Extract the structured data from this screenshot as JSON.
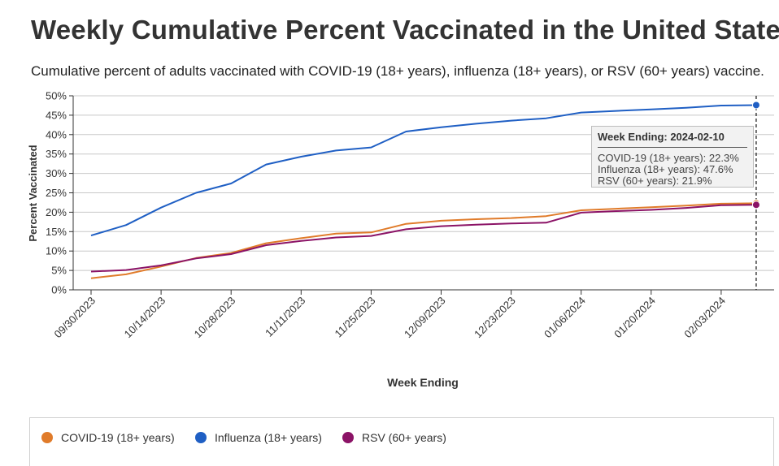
{
  "header": {
    "title": "Weekly Cumulative Percent Vaccinated in the United States",
    "subtitle": "Cumulative percent of adults vaccinated with COVID-19 (18+ years), influenza (18+ years), or RSV (60+ years) vaccine."
  },
  "colors": {
    "covid": "#e07b2a",
    "influenza": "#1f5fc4",
    "rsv": "#8b1366",
    "grid": "#c8c8c8",
    "axis": "#333333"
  },
  "tooltip": {
    "title": "Week Ending: 2024-02-10",
    "rows": [
      "COVID-19 (18+ years): 22.3%",
      "Influenza (18+ years): 47.6%",
      "RSV (60+ years): 21.9%"
    ]
  },
  "legend": {
    "items": [
      {
        "label": "COVID-19 (18+ years)",
        "color": "#e07b2a"
      },
      {
        "label": "Influenza (18+ years)",
        "color": "#1f5fc4"
      },
      {
        "label": "RSV (60+ years)",
        "color": "#8b1366"
      }
    ]
  },
  "chart_data": {
    "type": "line",
    "xlabel": "Week Ending",
    "ylabel": "Percent Vaccinated",
    "ylim": [
      0,
      50
    ],
    "yticks": [
      0,
      5,
      10,
      15,
      20,
      25,
      30,
      35,
      40,
      45,
      50
    ],
    "ytick_labels": [
      "0%",
      "5%",
      "10%",
      "15%",
      "20%",
      "25%",
      "30%",
      "35%",
      "40%",
      "45%",
      "50%"
    ],
    "xtick_labels": [
      "09/30/2023",
      "10/14/2023",
      "10/28/2023",
      "11/11/2023",
      "11/25/2023",
      "12/09/2023",
      "12/23/2023",
      "01/06/2024",
      "01/20/2024",
      "02/03/2024"
    ],
    "x": [
      "09/30/2023",
      "10/07/2023",
      "10/14/2023",
      "10/21/2023",
      "10/28/2023",
      "11/04/2023",
      "11/11/2023",
      "11/18/2023",
      "11/25/2023",
      "12/02/2023",
      "12/09/2023",
      "12/16/2023",
      "12/23/2023",
      "12/30/2023",
      "01/06/2024",
      "01/13/2024",
      "01/20/2024",
      "01/27/2024",
      "02/03/2024",
      "02/10/2024"
    ],
    "grid": true,
    "legend_position": "bottom",
    "highlight_x": "02/10/2024",
    "series": [
      {
        "name": "COVID-19 (18+ years)",
        "color": "#e07b2a",
        "values": [
          3.0,
          4.0,
          6.0,
          8.2,
          9.5,
          12.0,
          13.3,
          14.5,
          14.8,
          17.0,
          17.8,
          18.2,
          18.5,
          19.0,
          20.5,
          20.9,
          21.3,
          21.7,
          22.2,
          22.3
        ]
      },
      {
        "name": "Influenza (18+ years)",
        "color": "#1f5fc4",
        "values": [
          14.0,
          16.7,
          21.2,
          25.0,
          27.4,
          32.3,
          34.3,
          35.9,
          36.7,
          40.8,
          41.9,
          42.8,
          43.6,
          44.2,
          45.7,
          46.1,
          46.5,
          46.9,
          47.5,
          47.6
        ]
      },
      {
        "name": "RSV (60+ years)",
        "color": "#8b1366",
        "values": [
          4.7,
          5.1,
          6.3,
          8.1,
          9.2,
          11.5,
          12.6,
          13.5,
          13.9,
          15.6,
          16.4,
          16.8,
          17.1,
          17.3,
          19.9,
          20.3,
          20.6,
          21.1,
          21.8,
          21.9
        ]
      }
    ]
  }
}
